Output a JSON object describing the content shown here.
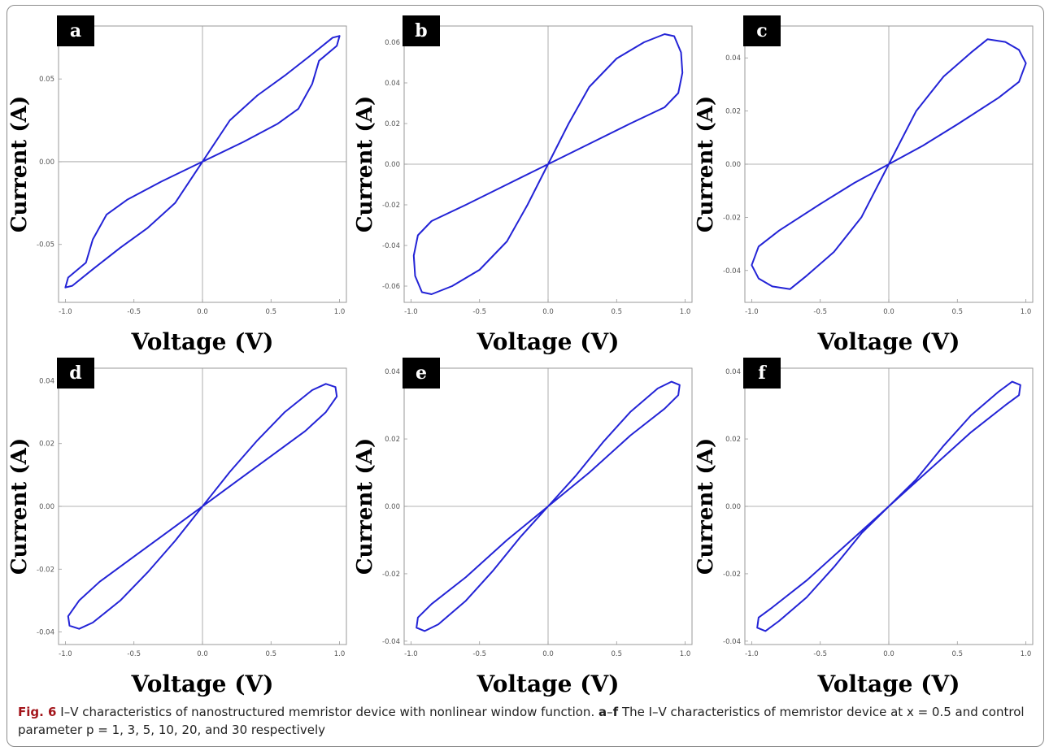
{
  "caption": {
    "label": "Fig. 6",
    "text1": "I–V characteristics of nanostructured memristor device with nonlinear window function.",
    "range_start": "a",
    "range_dash": "–",
    "range_end": "f",
    "text2": "The I–V characteristics of memristor device at x = 0.5 and control parameter p = 1, 3, 5, 10, 20, and 30 respectively"
  },
  "colors": {
    "curve": "#2323d6",
    "axis": "#9a9a9a",
    "frame": "#8c8c8c",
    "panel_label_bg": "#000000",
    "caption_label": "#a3151b"
  },
  "chart_data": [
    {
      "type": "line",
      "panel": "a",
      "p": 1,
      "xlabel": "Voltage (V)",
      "ylabel": "Current (A)",
      "xlim": [
        -1.05,
        1.05
      ],
      "ylim": [
        -0.085,
        0.082
      ],
      "xticks": [
        "-1.0",
        "-0.5",
        "0.0",
        "0.5",
        "1.0"
      ],
      "yticks": [
        "-0.05",
        "0.00",
        "0.05"
      ],
      "points": [
        [
          0,
          0
        ],
        [
          0.2,
          0.025
        ],
        [
          0.4,
          0.04
        ],
        [
          0.6,
          0.052
        ],
        [
          0.8,
          0.065
        ],
        [
          0.95,
          0.075
        ],
        [
          1.0,
          0.076
        ],
        [
          0.98,
          0.07
        ],
        [
          0.85,
          0.061
        ],
        [
          0.8,
          0.047
        ],
        [
          0.7,
          0.032
        ],
        [
          0.55,
          0.023
        ],
        [
          0.3,
          0.012
        ],
        [
          0,
          0
        ],
        [
          -0.2,
          -0.025
        ],
        [
          -0.4,
          -0.04
        ],
        [
          -0.6,
          -0.052
        ],
        [
          -0.8,
          -0.065
        ],
        [
          -0.95,
          -0.075
        ],
        [
          -1.0,
          -0.076
        ],
        [
          -0.98,
          -0.07
        ],
        [
          -0.85,
          -0.061
        ],
        [
          -0.8,
          -0.047
        ],
        [
          -0.7,
          -0.032
        ],
        [
          -0.55,
          -0.023
        ],
        [
          -0.3,
          -0.012
        ],
        [
          0,
          0
        ]
      ]
    },
    {
      "type": "line",
      "panel": "b",
      "p": 3,
      "xlabel": "Voltage (V)",
      "ylabel": "Current (A)",
      "xlim": [
        -1.05,
        1.05
      ],
      "ylim": [
        -0.068,
        0.068
      ],
      "xticks": [
        "-1.0",
        "-0.5",
        "0.0",
        "0.5",
        "1.0"
      ],
      "yticks": [
        "-0.06",
        "-0.04",
        "-0.02",
        "0.00",
        "0.02",
        "0.04",
        "0.06"
      ],
      "points": [
        [
          0,
          0
        ],
        [
          0.15,
          0.02
        ],
        [
          0.3,
          0.038
        ],
        [
          0.5,
          0.052
        ],
        [
          0.7,
          0.06
        ],
        [
          0.85,
          0.064
        ],
        [
          0.92,
          0.063
        ],
        [
          0.97,
          0.055
        ],
        [
          0.98,
          0.045
        ],
        [
          0.95,
          0.035
        ],
        [
          0.85,
          0.028
        ],
        [
          0.6,
          0.02
        ],
        [
          0.3,
          0.01
        ],
        [
          0,
          0
        ],
        [
          -0.15,
          -0.02
        ],
        [
          -0.3,
          -0.038
        ],
        [
          -0.5,
          -0.052
        ],
        [
          -0.7,
          -0.06
        ],
        [
          -0.85,
          -0.064
        ],
        [
          -0.92,
          -0.063
        ],
        [
          -0.97,
          -0.055
        ],
        [
          -0.98,
          -0.045
        ],
        [
          -0.95,
          -0.035
        ],
        [
          -0.85,
          -0.028
        ],
        [
          -0.6,
          -0.02
        ],
        [
          -0.3,
          -0.01
        ],
        [
          0,
          0
        ]
      ]
    },
    {
      "type": "line",
      "panel": "c",
      "p": 5,
      "xlabel": "Voltage (V)",
      "ylabel": "Current (A)",
      "xlim": [
        -1.05,
        1.05
      ],
      "ylim": [
        -0.052,
        0.052
      ],
      "xticks": [
        "-1.0",
        "-0.5",
        "0.0",
        "0.5",
        "1.0"
      ],
      "yticks": [
        "-0.04",
        "-0.02",
        "0.00",
        "0.02",
        "0.04"
      ],
      "points": [
        [
          0,
          0
        ],
        [
          0.2,
          0.02
        ],
        [
          0.4,
          0.033
        ],
        [
          0.6,
          0.042
        ],
        [
          0.72,
          0.047
        ],
        [
          0.85,
          0.046
        ],
        [
          0.95,
          0.043
        ],
        [
          1.0,
          0.038
        ],
        [
          0.95,
          0.031
        ],
        [
          0.8,
          0.025
        ],
        [
          0.5,
          0.015
        ],
        [
          0.25,
          0.007
        ],
        [
          0,
          0
        ],
        [
          -0.2,
          -0.02
        ],
        [
          -0.4,
          -0.033
        ],
        [
          -0.6,
          -0.042
        ],
        [
          -0.72,
          -0.047
        ],
        [
          -0.85,
          -0.046
        ],
        [
          -0.95,
          -0.043
        ],
        [
          -1.0,
          -0.038
        ],
        [
          -0.95,
          -0.031
        ],
        [
          -0.8,
          -0.025
        ],
        [
          -0.5,
          -0.015
        ],
        [
          -0.25,
          -0.007
        ],
        [
          0,
          0
        ]
      ]
    },
    {
      "type": "line",
      "panel": "d",
      "p": 10,
      "xlabel": "Voltage (V)",
      "ylabel": "Current (A)",
      "xlim": [
        -1.05,
        1.05
      ],
      "ylim": [
        -0.044,
        0.044
      ],
      "xticks": [
        "-1.0",
        "-0.5",
        "0.0",
        "0.5",
        "1.0"
      ],
      "yticks": [
        "-0.04",
        "-0.02",
        "0.00",
        "0.02",
        "0.04"
      ],
      "points": [
        [
          0,
          0
        ],
        [
          0.2,
          0.011
        ],
        [
          0.4,
          0.021
        ],
        [
          0.6,
          0.03
        ],
        [
          0.8,
          0.037
        ],
        [
          0.9,
          0.039
        ],
        [
          0.97,
          0.038
        ],
        [
          0.98,
          0.035
        ],
        [
          0.9,
          0.03
        ],
        [
          0.75,
          0.024
        ],
        [
          0.5,
          0.016
        ],
        [
          0.25,
          0.008
        ],
        [
          0,
          0
        ],
        [
          -0.2,
          -0.011
        ],
        [
          -0.4,
          -0.021
        ],
        [
          -0.6,
          -0.03
        ],
        [
          -0.8,
          -0.037
        ],
        [
          -0.9,
          -0.039
        ],
        [
          -0.97,
          -0.038
        ],
        [
          -0.98,
          -0.035
        ],
        [
          -0.9,
          -0.03
        ],
        [
          -0.75,
          -0.024
        ],
        [
          -0.5,
          -0.016
        ],
        [
          -0.25,
          -0.008
        ],
        [
          0,
          0
        ]
      ]
    },
    {
      "type": "line",
      "panel": "e",
      "p": 20,
      "xlabel": "Voltage (V)",
      "ylabel": "Current (A)",
      "xlim": [
        -1.05,
        1.05
      ],
      "ylim": [
        -0.041,
        0.041
      ],
      "xticks": [
        "-1.0",
        "-0.5",
        "0.0",
        "0.5",
        "1.0"
      ],
      "yticks": [
        "-0.04",
        "-0.02",
        "0.00",
        "0.02",
        "0.04"
      ],
      "points": [
        [
          0,
          0
        ],
        [
          0.2,
          0.009
        ],
        [
          0.4,
          0.019
        ],
        [
          0.6,
          0.028
        ],
        [
          0.8,
          0.035
        ],
        [
          0.9,
          0.037
        ],
        [
          0.96,
          0.036
        ],
        [
          0.95,
          0.033
        ],
        [
          0.85,
          0.029
        ],
        [
          0.6,
          0.021
        ],
        [
          0.3,
          0.01
        ],
        [
          0,
          0
        ],
        [
          -0.2,
          -0.009
        ],
        [
          -0.4,
          -0.019
        ],
        [
          -0.6,
          -0.028
        ],
        [
          -0.8,
          -0.035
        ],
        [
          -0.9,
          -0.037
        ],
        [
          -0.96,
          -0.036
        ],
        [
          -0.95,
          -0.033
        ],
        [
          -0.85,
          -0.029
        ],
        [
          -0.6,
          -0.021
        ],
        [
          -0.3,
          -0.01
        ],
        [
          0,
          0
        ]
      ]
    },
    {
      "type": "line",
      "panel": "f",
      "p": 30,
      "xlabel": "Voltage (V)",
      "ylabel": "Current (A)",
      "xlim": [
        -1.05,
        1.05
      ],
      "ylim": [
        -0.041,
        0.041
      ],
      "xticks": [
        "-1.0",
        "-0.5",
        "0.0",
        "0.5",
        "1.0"
      ],
      "yticks": [
        "-0.04",
        "-0.02",
        "0.00",
        "0.02",
        "0.04"
      ],
      "points": [
        [
          0,
          0
        ],
        [
          0.2,
          0.008
        ],
        [
          0.4,
          0.018
        ],
        [
          0.6,
          0.027
        ],
        [
          0.8,
          0.034
        ],
        [
          0.9,
          0.037
        ],
        [
          0.96,
          0.036
        ],
        [
          0.95,
          0.033
        ],
        [
          0.85,
          0.03
        ],
        [
          0.6,
          0.022
        ],
        [
          0.3,
          0.011
        ],
        [
          0,
          0
        ],
        [
          -0.2,
          -0.008
        ],
        [
          -0.4,
          -0.018
        ],
        [
          -0.6,
          -0.027
        ],
        [
          -0.8,
          -0.034
        ],
        [
          -0.9,
          -0.037
        ],
        [
          -0.96,
          -0.036
        ],
        [
          -0.95,
          -0.033
        ],
        [
          -0.85,
          -0.03
        ],
        [
          -0.6,
          -0.022
        ],
        [
          -0.3,
          -0.011
        ],
        [
          0,
          0
        ]
      ]
    }
  ]
}
